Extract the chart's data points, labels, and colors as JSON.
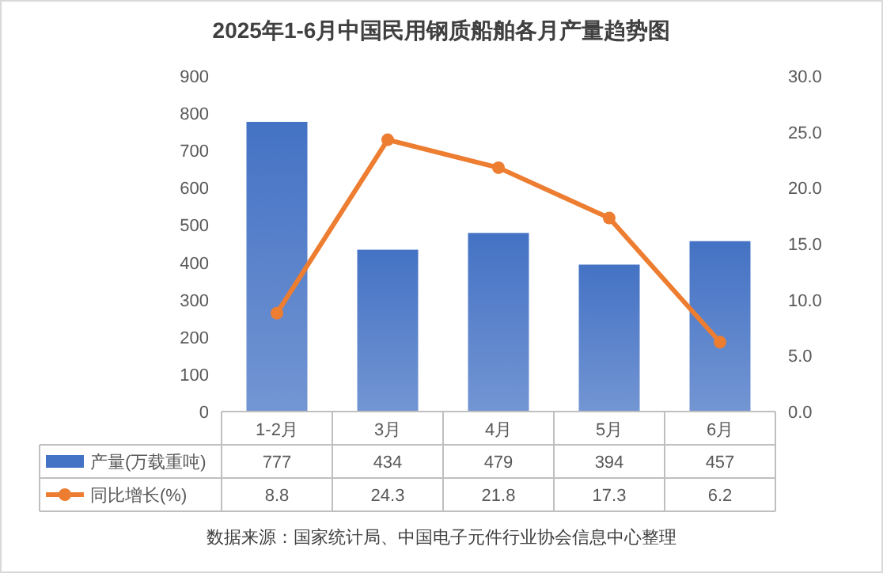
{
  "chart_data": {
    "type": "bar",
    "title": "2025年1-6月中国民用钢质船舶各月产量趋势图",
    "categories": [
      "1-2月",
      "3月",
      "4月",
      "5月",
      "6月"
    ],
    "series": [
      {
        "name": "产量(万载重吨)",
        "color": "#4472c4",
        "values": [
          777,
          434,
          479,
          394,
          457
        ]
      },
      {
        "name": "同比增长(%)",
        "type": "line",
        "axis": "y2",
        "color": "#ed7d31",
        "values": [
          8.8,
          24.3,
          21.8,
          17.3,
          6.2
        ]
      }
    ],
    "ylim": [
      0,
      900
    ],
    "yticks": [
      0,
      100,
      200,
      300,
      400,
      500,
      600,
      700,
      800,
      900
    ],
    "y2lim": [
      0,
      30
    ],
    "y2ticks": [
      {
        "value": 0,
        "label": "0.0"
      },
      {
        "value": 5,
        "label": "5.0"
      },
      {
        "value": 10,
        "label": "10.0"
      },
      {
        "value": 15,
        "label": "15.0"
      },
      {
        "value": 20,
        "label": "20.0"
      },
      {
        "value": 25,
        "label": "25.0"
      },
      {
        "value": 30,
        "label": "30.0"
      }
    ],
    "data_labels": true,
    "legend": "bottom",
    "marker": "circle",
    "grid": false,
    "annotations": [
      "数据来源：国家统计局、中国电子元件行业协会信息中心整理"
    ]
  }
}
